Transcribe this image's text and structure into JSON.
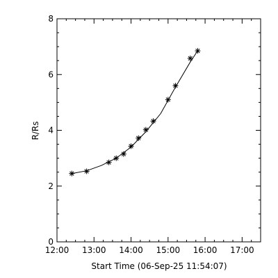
{
  "chart_data": {
    "type": "scatter",
    "title": "",
    "xlabel": "Start Time (06-Sep-25 11:54:07)",
    "ylabel": "R/Rs",
    "xlim": [
      "12:00",
      "17:30"
    ],
    "ylim": [
      0,
      8
    ],
    "x_ticks": [
      "12:00",
      "13:00",
      "14:00",
      "15:00",
      "16:00",
      "17:00"
    ],
    "y_ticks": [
      0,
      2,
      4,
      6,
      8
    ],
    "grid": false,
    "legend": "none",
    "marker": "asterisk",
    "color": "#000000",
    "points": {
      "x": [
        "12:24",
        "12:48",
        "13:24",
        "13:36",
        "13:48",
        "14:00",
        "14:12",
        "14:24",
        "14:36",
        "15:00",
        "15:12",
        "15:36",
        "15:48"
      ],
      "y": [
        2.45,
        2.53,
        2.85,
        3.0,
        3.15,
        3.43,
        3.72,
        4.02,
        4.33,
        5.1,
        5.6,
        6.58,
        6.85
      ]
    },
    "fit": {
      "x": [
        "12:24",
        "12:48",
        "13:12",
        "13:36",
        "14:00",
        "14:24",
        "14:48",
        "15:12",
        "15:36",
        "15:48"
      ],
      "y": [
        2.45,
        2.55,
        2.74,
        3.0,
        3.4,
        3.95,
        4.6,
        5.55,
        6.45,
        6.85
      ]
    }
  }
}
